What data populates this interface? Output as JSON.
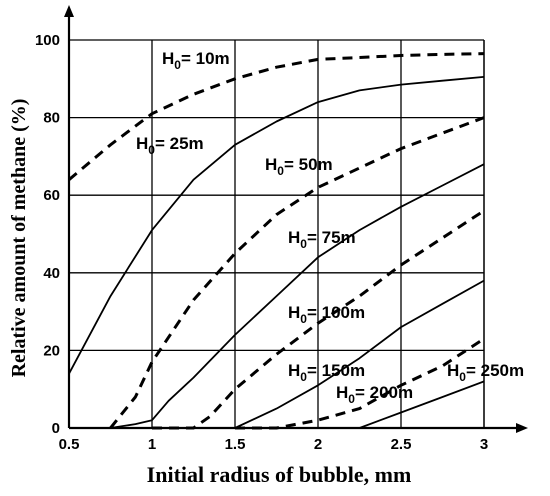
{
  "chart_data": {
    "type": "line",
    "title": "",
    "xlabel": "Initial radius of bubble, mm",
    "ylabel": "Relative amount of methane  (%)",
    "xlim": [
      0.5,
      3.0
    ],
    "ylim": [
      0,
      100
    ],
    "xticks": [
      0.5,
      1,
      1.5,
      2,
      2.5,
      3
    ],
    "xtick_labels": [
      "0.5",
      "1",
      "1.5",
      "2",
      "2.5",
      "3"
    ],
    "yticks": [
      0,
      20,
      40,
      60,
      80,
      100
    ],
    "ytick_labels": [
      "0",
      "20",
      "40",
      "60",
      "80",
      "100"
    ],
    "grid": true,
    "legend": "none",
    "series": [
      {
        "label_prefix": "H",
        "label_sub": "0",
        "label_rest": "= 10m",
        "dash": "dashed",
        "x": [
          0.5,
          0.75,
          1.0,
          1.25,
          1.5,
          1.75,
          2.0,
          2.25,
          2.5,
          2.75,
          3.0
        ],
        "y": [
          64,
          73,
          81,
          86,
          90,
          93,
          95,
          95.5,
          96,
          96.3,
          96.5
        ]
      },
      {
        "label_prefix": "H",
        "label_sub": "0",
        "label_rest": "= 25m",
        "dash": "solid",
        "x": [
          0.5,
          0.75,
          1.0,
          1.25,
          1.5,
          1.75,
          2.0,
          2.25,
          2.5,
          2.75,
          3.0
        ],
        "y": [
          14,
          34,
          51,
          64,
          73,
          79,
          84,
          87,
          88.5,
          89.5,
          90.5
        ]
      },
      {
        "label_prefix": "H",
        "label_sub": "0",
        "label_rest": "= 50m",
        "dash": "dashed",
        "x": [
          0.75,
          0.9,
          1.0,
          1.25,
          1.5,
          1.75,
          2.0,
          2.25,
          2.5,
          2.75,
          3.0
        ],
        "y": [
          0,
          8,
          17,
          33,
          45,
          55,
          62,
          67,
          72,
          76,
          80
        ]
      },
      {
        "label_prefix": "H",
        "label_sub": "0",
        "label_rest": "= 75m",
        "dash": "solid",
        "x": [
          0.75,
          0.9,
          1.0,
          1.1,
          1.25,
          1.5,
          1.75,
          2.0,
          2.25,
          2.5,
          2.75,
          3.0
        ],
        "y": [
          0,
          1,
          2,
          7,
          13,
          24,
          34,
          44,
          51,
          57,
          62.5,
          68
        ]
      },
      {
        "label_prefix": "H",
        "label_sub": "0",
        "label_rest": "= 100m",
        "dash": "dashed",
        "x": [
          1.0,
          1.25,
          1.35,
          1.5,
          1.75,
          2.0,
          2.25,
          2.5,
          2.75,
          3.0
        ],
        "y": [
          0,
          0,
          3,
          10,
          19,
          27,
          34,
          42,
          49,
          56
        ]
      },
      {
        "label_prefix": "H",
        "label_sub": "0",
        "label_rest": "= 150m",
        "dash": "solid",
        "x": [
          1.5,
          1.75,
          2.0,
          2.25,
          2.5,
          2.75,
          3.0
        ],
        "y": [
          0,
          5,
          11,
          18,
          26,
          32,
          38
        ]
      },
      {
        "label_prefix": "H",
        "label_sub": "0",
        "label_rest": "= 200m",
        "dash": "dashed",
        "x": [
          1.5,
          1.75,
          2.0,
          2.25,
          2.5,
          2.75,
          3.0
        ],
        "y": [
          0,
          0,
          2,
          5,
          11,
          16,
          23
        ]
      },
      {
        "label_prefix": "H",
        "label_sub": "0",
        "label_rest": "= 250m",
        "dash": "solid",
        "x": [
          2.0,
          2.25,
          2.5,
          2.75,
          3.0
        ],
        "y": [
          0,
          0,
          4,
          8,
          12
        ]
      }
    ]
  }
}
